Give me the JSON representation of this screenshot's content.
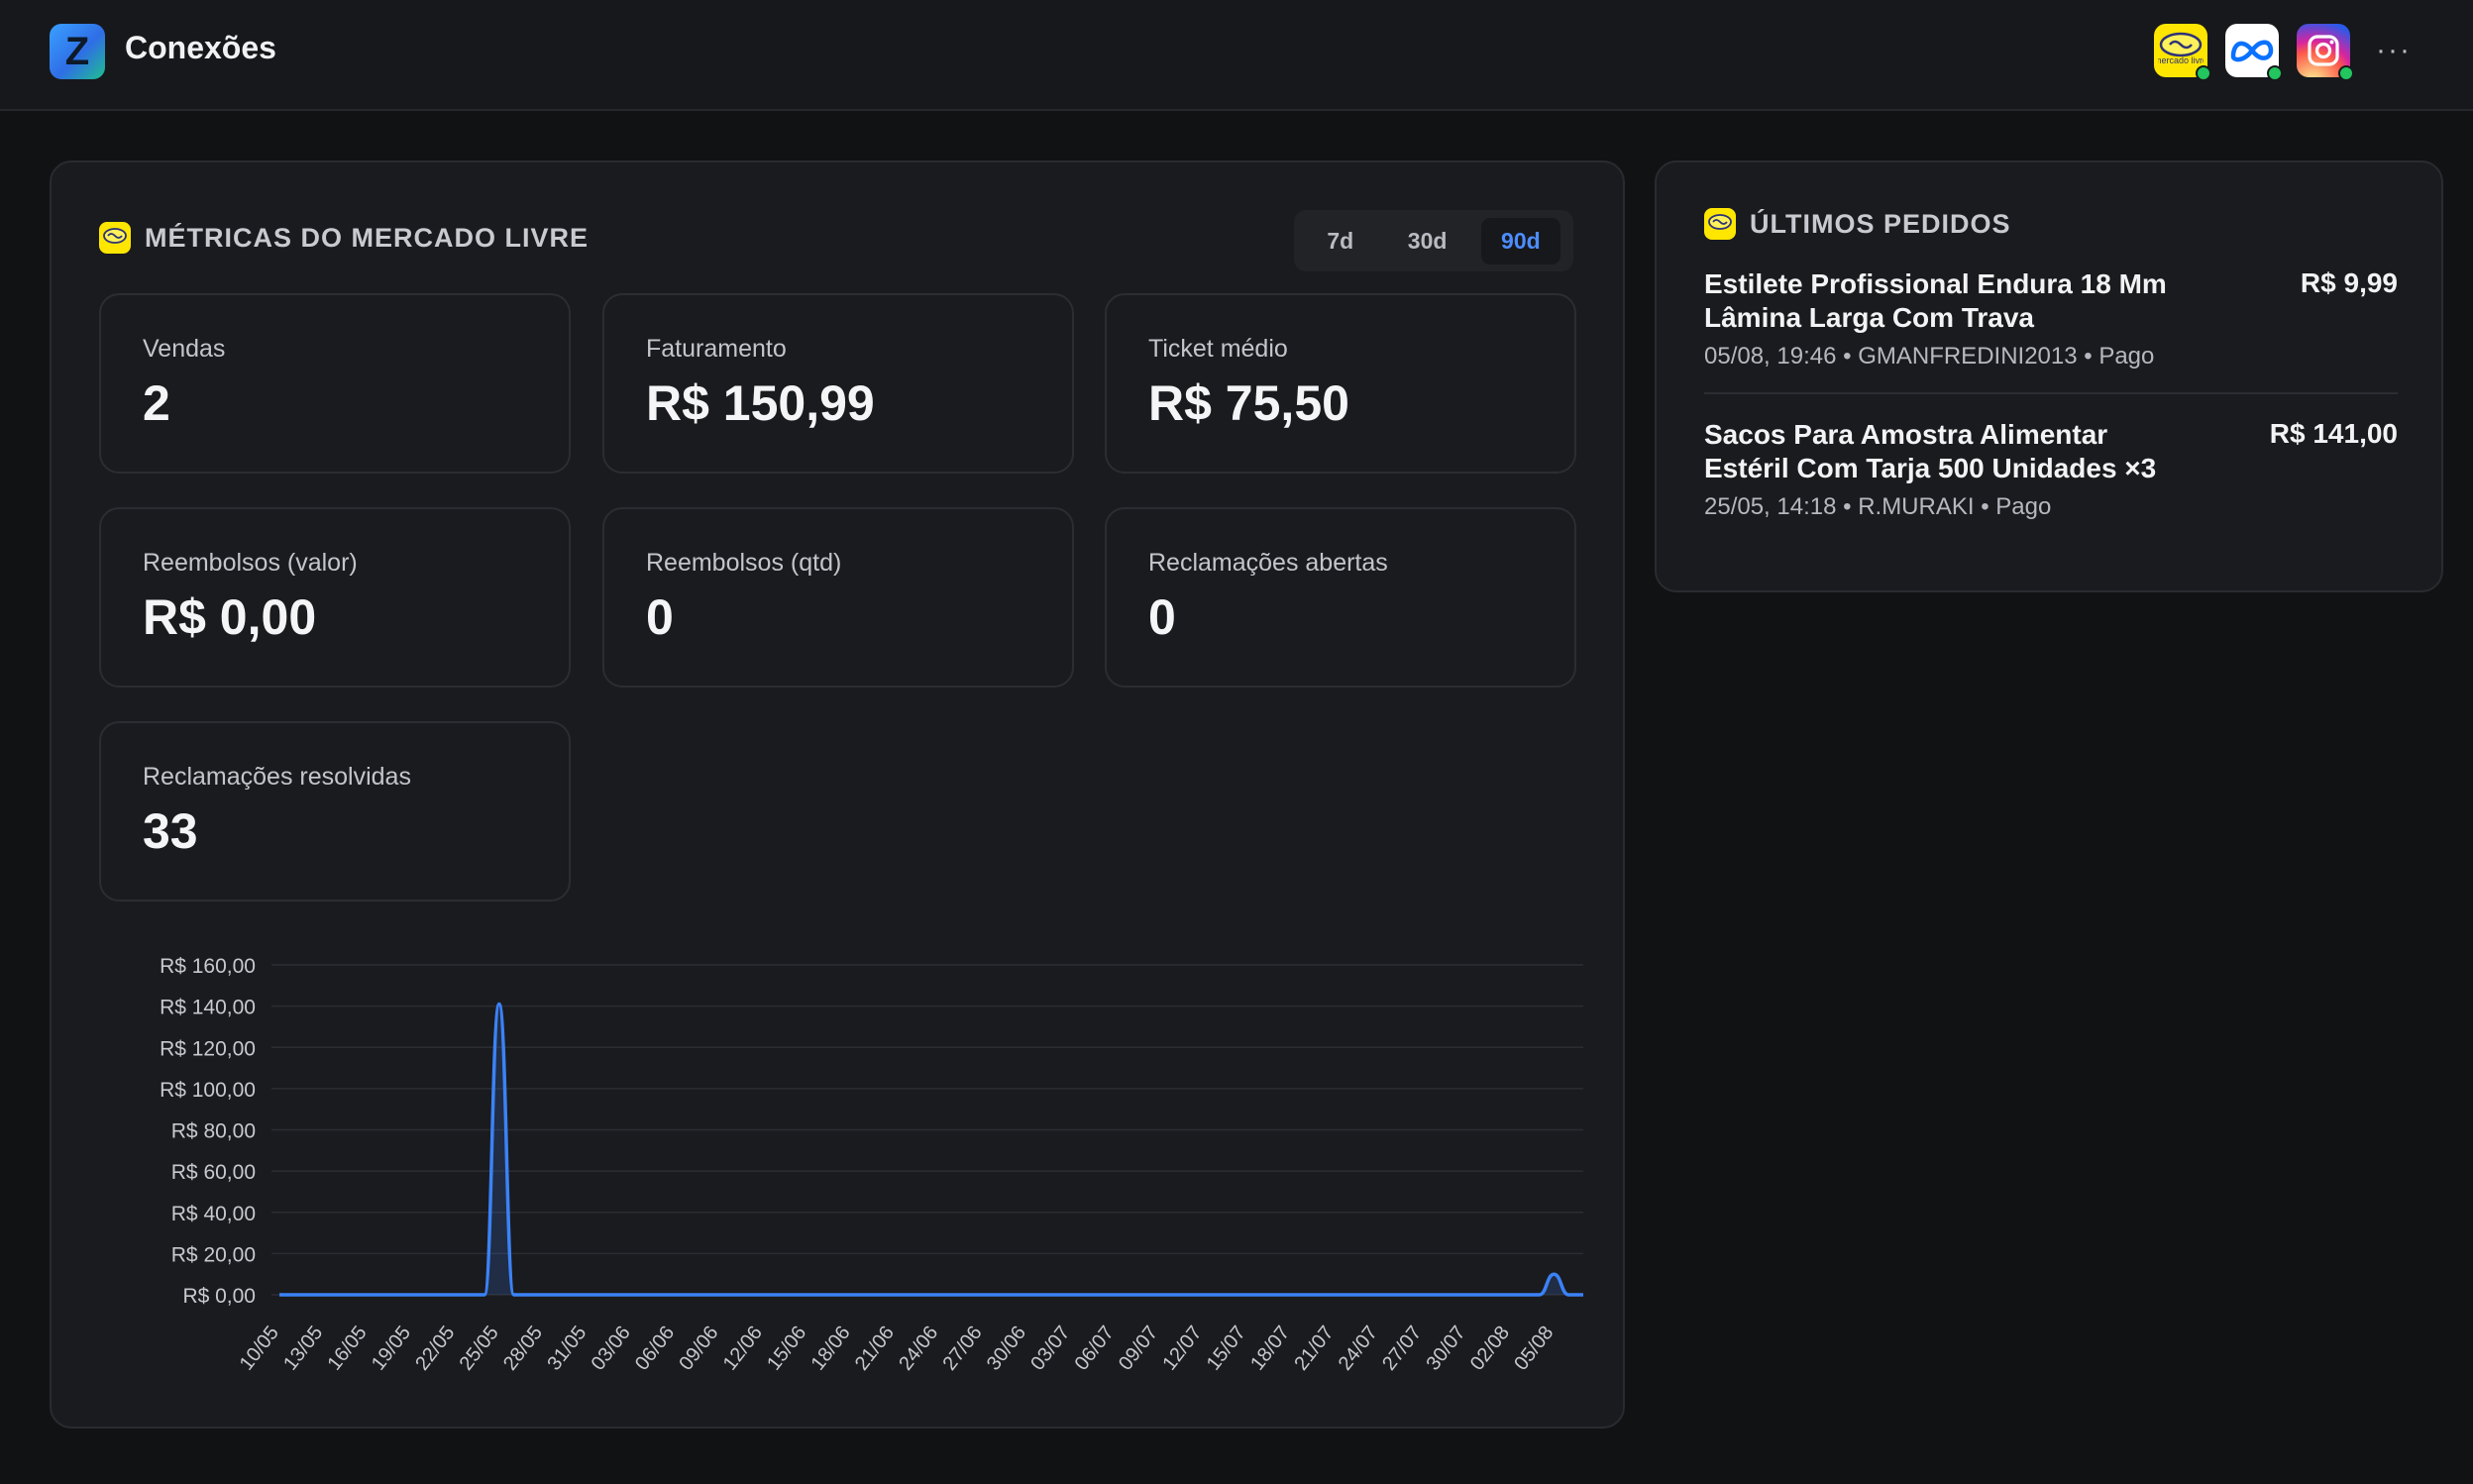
{
  "header": {
    "app_logo_letter": "Z",
    "title": "Conexões",
    "connections": [
      {
        "name": "Mercado Livre",
        "icon": "mercado-livre-icon",
        "status": "connected",
        "logo_text": "mercado livre"
      },
      {
        "name": "Meta",
        "icon": "meta-icon",
        "status": "connected"
      },
      {
        "name": "Instagram",
        "icon": "instagram-icon",
        "status": "connected"
      }
    ],
    "more_label": "···"
  },
  "metrics": {
    "title": "MÉTRICAS DO MERCADO LIVRE",
    "ranges": [
      "7d",
      "30d",
      "90d"
    ],
    "selected_range": "90d",
    "cards": [
      {
        "label": "Vendas",
        "value": "2"
      },
      {
        "label": "Faturamento",
        "value": "R$ 150,99"
      },
      {
        "label": "Ticket médio",
        "value": "R$ 75,50"
      },
      {
        "label": "Reembolsos (valor)",
        "value": "R$ 0,00"
      },
      {
        "label": "Reembolsos (qtd)",
        "value": "0"
      },
      {
        "label": "Reclamações abertas",
        "value": "0"
      },
      {
        "label": "Reclamações resolvidas",
        "value": "33"
      }
    ]
  },
  "chart_data": {
    "type": "area",
    "title": "",
    "xlabel": "",
    "ylabel": "",
    "ylim": [
      0,
      160
    ],
    "y_ticks": [
      "R$ 0,00",
      "R$ 20,00",
      "R$ 40,00",
      "R$ 60,00",
      "R$ 80,00",
      "R$ 100,00",
      "R$ 120,00",
      "R$ 140,00",
      "R$ 160,00"
    ],
    "x_tick_labels": [
      "10/05",
      "13/05",
      "16/05",
      "19/05",
      "22/05",
      "25/05",
      "28/05",
      "31/05",
      "03/06",
      "06/06",
      "09/06",
      "12/06",
      "15/06",
      "18/06",
      "21/06",
      "24/06",
      "27/06",
      "30/06",
      "03/07",
      "06/07",
      "09/07",
      "12/07",
      "15/07",
      "18/07",
      "21/07",
      "24/07",
      "27/07",
      "30/07",
      "02/08",
      "05/08"
    ],
    "grid": true,
    "color": "#3b82f6",
    "series": [
      {
        "x": [
          "10/05",
          "24/05",
          "25/05",
          "26/05",
          "04/08",
          "05/08",
          "06/08",
          "07/08"
        ],
        "values": [
          0,
          0,
          141.0,
          0,
          0,
          9.99,
          0,
          0
        ]
      }
    ]
  },
  "orders": {
    "title": "ÚLTIMOS PEDIDOS",
    "items": [
      {
        "title": "Estilete Profissional Endura 18 Mm Lâmina Larga Com Trava",
        "price": "R$ 9,99",
        "meta": "05/08, 19:46 • GMANFREDINI2013 • Pago"
      },
      {
        "title": "Sacos Para Amostra Alimentar Estéril Com Tarja 500 Unidades ×3",
        "price": "R$ 141,00",
        "meta": "25/05, 14:18 • R.MURAKI • Pago"
      }
    ]
  }
}
